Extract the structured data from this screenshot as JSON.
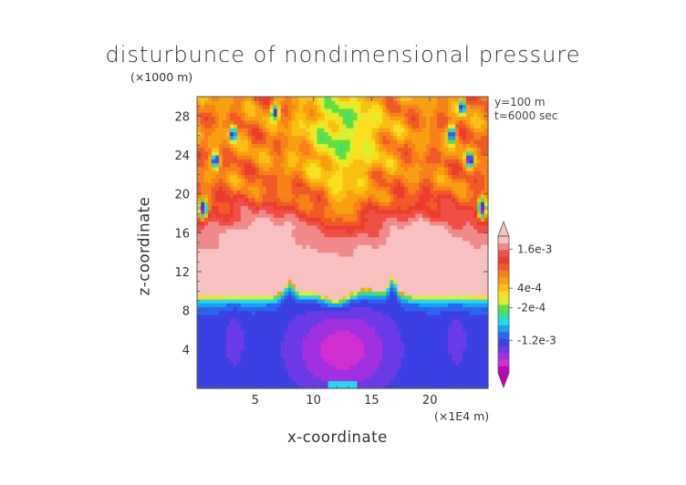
{
  "chart_data": {
    "type": "heatmap",
    "title": "disturbunce of nondimensional pressure",
    "xlabel": "x-coordinate",
    "ylabel": "z-coordinate",
    "x_unit": "(×1E4 m)",
    "y_unit": "(×1000 m)",
    "annotations": [
      "y=100  m",
      "t=6000 sec"
    ],
    "x_ticks": [
      5,
      10,
      15,
      20
    ],
    "y_ticks": [
      4,
      8,
      12,
      16,
      20,
      24,
      28
    ],
    "xlim": [
      0,
      25
    ],
    "ylim": [
      0,
      30
    ],
    "colorbar_labels": [
      "1.6e-3",
      "4e-4",
      "-2e-4",
      "-1.2e-3"
    ],
    "colorbar_label_values": [
      0.0016,
      0.0004,
      -0.0002,
      -0.0012
    ],
    "colorbar_colors": [
      "#c000c0",
      "#d030d0",
      "#a030e0",
      "#6a3ae6",
      "#3a40e4",
      "#2a64f0",
      "#1aa0f0",
      "#20d8f0",
      "#30e090",
      "#60e040",
      "#d8f030",
      "#f8e020",
      "#f8c010",
      "#f8a010",
      "#f88018",
      "#f05a28",
      "#ec3c2e",
      "#f04e46",
      "#f08a8a",
      "#f8c0c0"
    ],
    "field_regions": [
      {
        "region": "z < 9 (lower layer)",
        "approx_value": -0.0012
      },
      {
        "region": "x 8–17, z < 8 (center lower)",
        "approx_value": -0.0018
      },
      {
        "region": "z 10–17 (middle layer)",
        "approx_value": 0.0019
      },
      {
        "region": "z 17–30 (upper layer)",
        "approx_value": 0.0008
      },
      {
        "region": "x 10–15, z 22–30 (upper center plume)",
        "approx_value": 0.0004
      }
    ],
    "grid": false
  }
}
